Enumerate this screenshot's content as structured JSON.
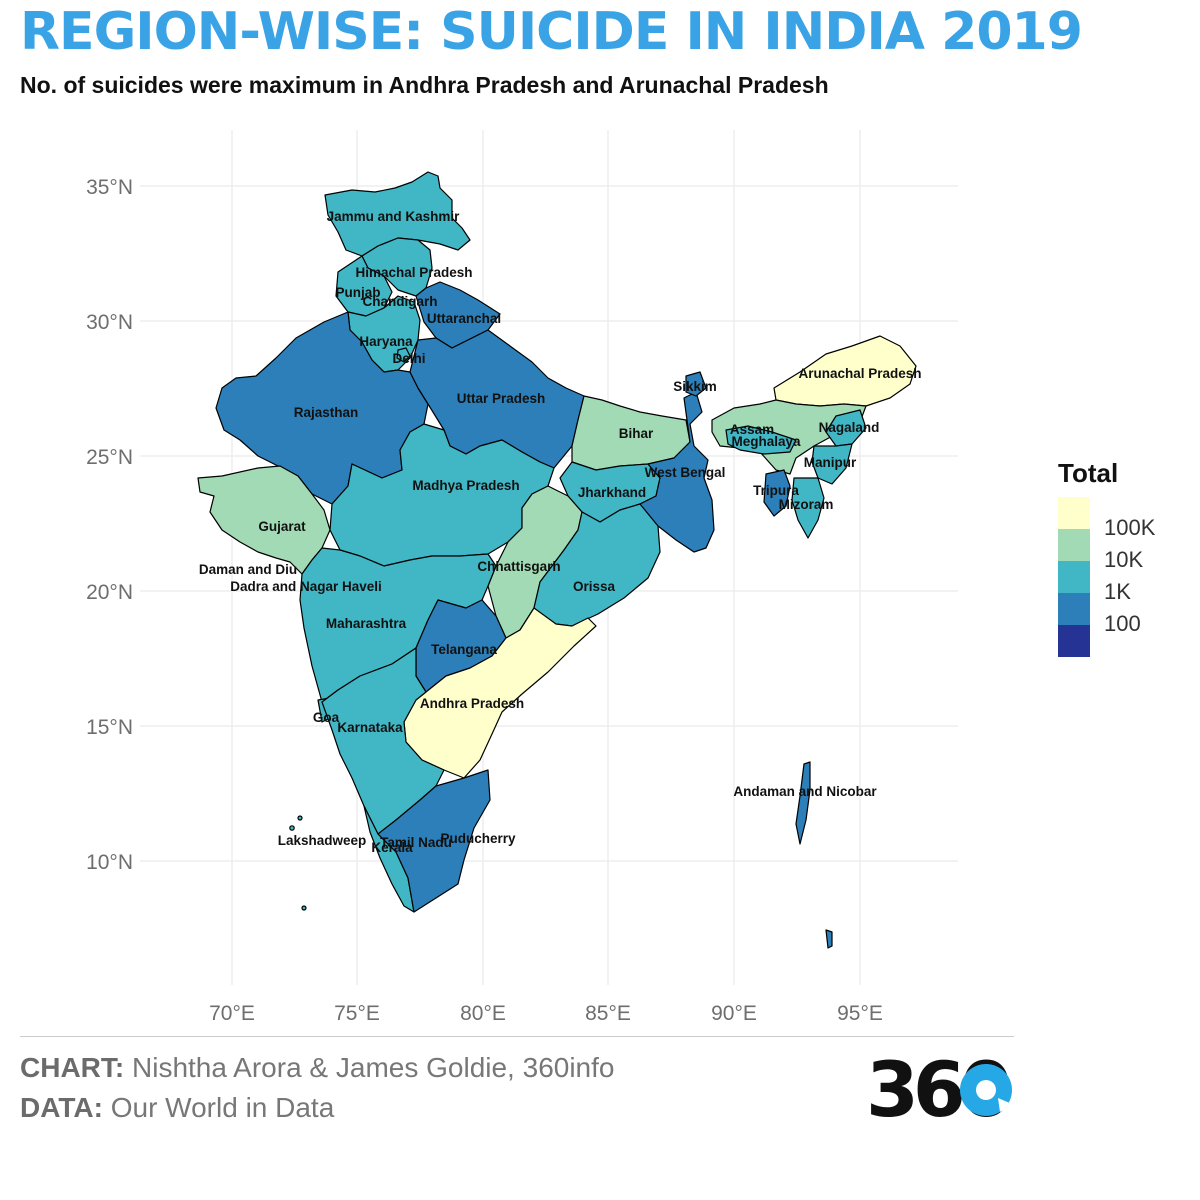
{
  "title": "REGION-WISE: SUICIDE IN INDIA 2019",
  "subtitle": "No. of suicides were maximum in Andhra Pradesh and Arunachal Pradesh",
  "colors": {
    "title": "#3aa3e6",
    "grid": "#ebebeb",
    "scale": [
      "#ffffcc",
      "#a1dab4",
      "#41b6c4",
      "#2c7fb8",
      "#253494"
    ]
  },
  "map": {
    "lat_ticks": [
      "35°N",
      "30°N",
      "25°N",
      "20°N",
      "15°N",
      "10°N"
    ],
    "lon_ticks": [
      "70°E",
      "75°E",
      "80°E",
      "85°E",
      "90°E",
      "95°E"
    ],
    "regions": [
      {
        "name": "Jammu and Kashmir",
        "level": "1K-10K"
      },
      {
        "name": "Himachal Pradesh",
        "level": "1K-10K"
      },
      {
        "name": "Punjab",
        "level": "1K-10K"
      },
      {
        "name": "Chandigarh",
        "level": "1K-10K"
      },
      {
        "name": "Uttaranchal",
        "level": "100-1K"
      },
      {
        "name": "Haryana",
        "level": "1K-10K"
      },
      {
        "name": "Delhi",
        "level": "1K-10K"
      },
      {
        "name": "Rajasthan",
        "level": "100-1K"
      },
      {
        "name": "Uttar Pradesh",
        "level": "100-1K"
      },
      {
        "name": "Bihar",
        "level": "10K-100K"
      },
      {
        "name": "Sikkim",
        "level": "100-1K"
      },
      {
        "name": "Arunachal Pradesh",
        "level": "100K+"
      },
      {
        "name": "Assam",
        "level": "10K-100K"
      },
      {
        "name": "Meghalaya",
        "level": "1K-10K"
      },
      {
        "name": "Nagaland",
        "level": "1K-10K"
      },
      {
        "name": "Manipur",
        "level": "1K-10K"
      },
      {
        "name": "Tripura",
        "level": "100-1K"
      },
      {
        "name": "Mizoram",
        "level": "1K-10K"
      },
      {
        "name": "West Bengal",
        "level": "100-1K"
      },
      {
        "name": "Jharkhand",
        "level": "1K-10K"
      },
      {
        "name": "Gujarat",
        "level": "10K-100K"
      },
      {
        "name": "Madhya Pradesh",
        "level": "1K-10K"
      },
      {
        "name": "Daman and Diu",
        "level": "1K-10K"
      },
      {
        "name": "Dadra and Nagar Haveli",
        "level": "1K-10K"
      },
      {
        "name": "Chhattisgarh",
        "level": "10K-100K"
      },
      {
        "name": "Orissa",
        "level": "1K-10K"
      },
      {
        "name": "Maharashtra",
        "level": "1K-10K"
      },
      {
        "name": "Telangana",
        "level": "100-1K"
      },
      {
        "name": "Andhra Pradesh",
        "level": "100K+"
      },
      {
        "name": "Goa",
        "level": "1K-10K"
      },
      {
        "name": "Karnataka",
        "level": "1K-10K"
      },
      {
        "name": "Andaman and Nicobar",
        "level": "100-1K"
      },
      {
        "name": "Lakshadweep",
        "level": "1K-10K"
      },
      {
        "name": "Kerala",
        "level": "1K-10K"
      },
      {
        "name": "Tamil Nadu",
        "level": "100-1K"
      },
      {
        "name": "Puducherry",
        "level": "100-1K"
      }
    ]
  },
  "legend": {
    "title": "Total",
    "labels": [
      "100K",
      "10K",
      "1K",
      "100"
    ]
  },
  "footer": {
    "chart_label": "CHART:",
    "chart_credit": "Nishtha Arora & James Goldie, 360info",
    "data_label": "DATA:",
    "data_credit": "Our World in Data",
    "logo_text": "360"
  }
}
